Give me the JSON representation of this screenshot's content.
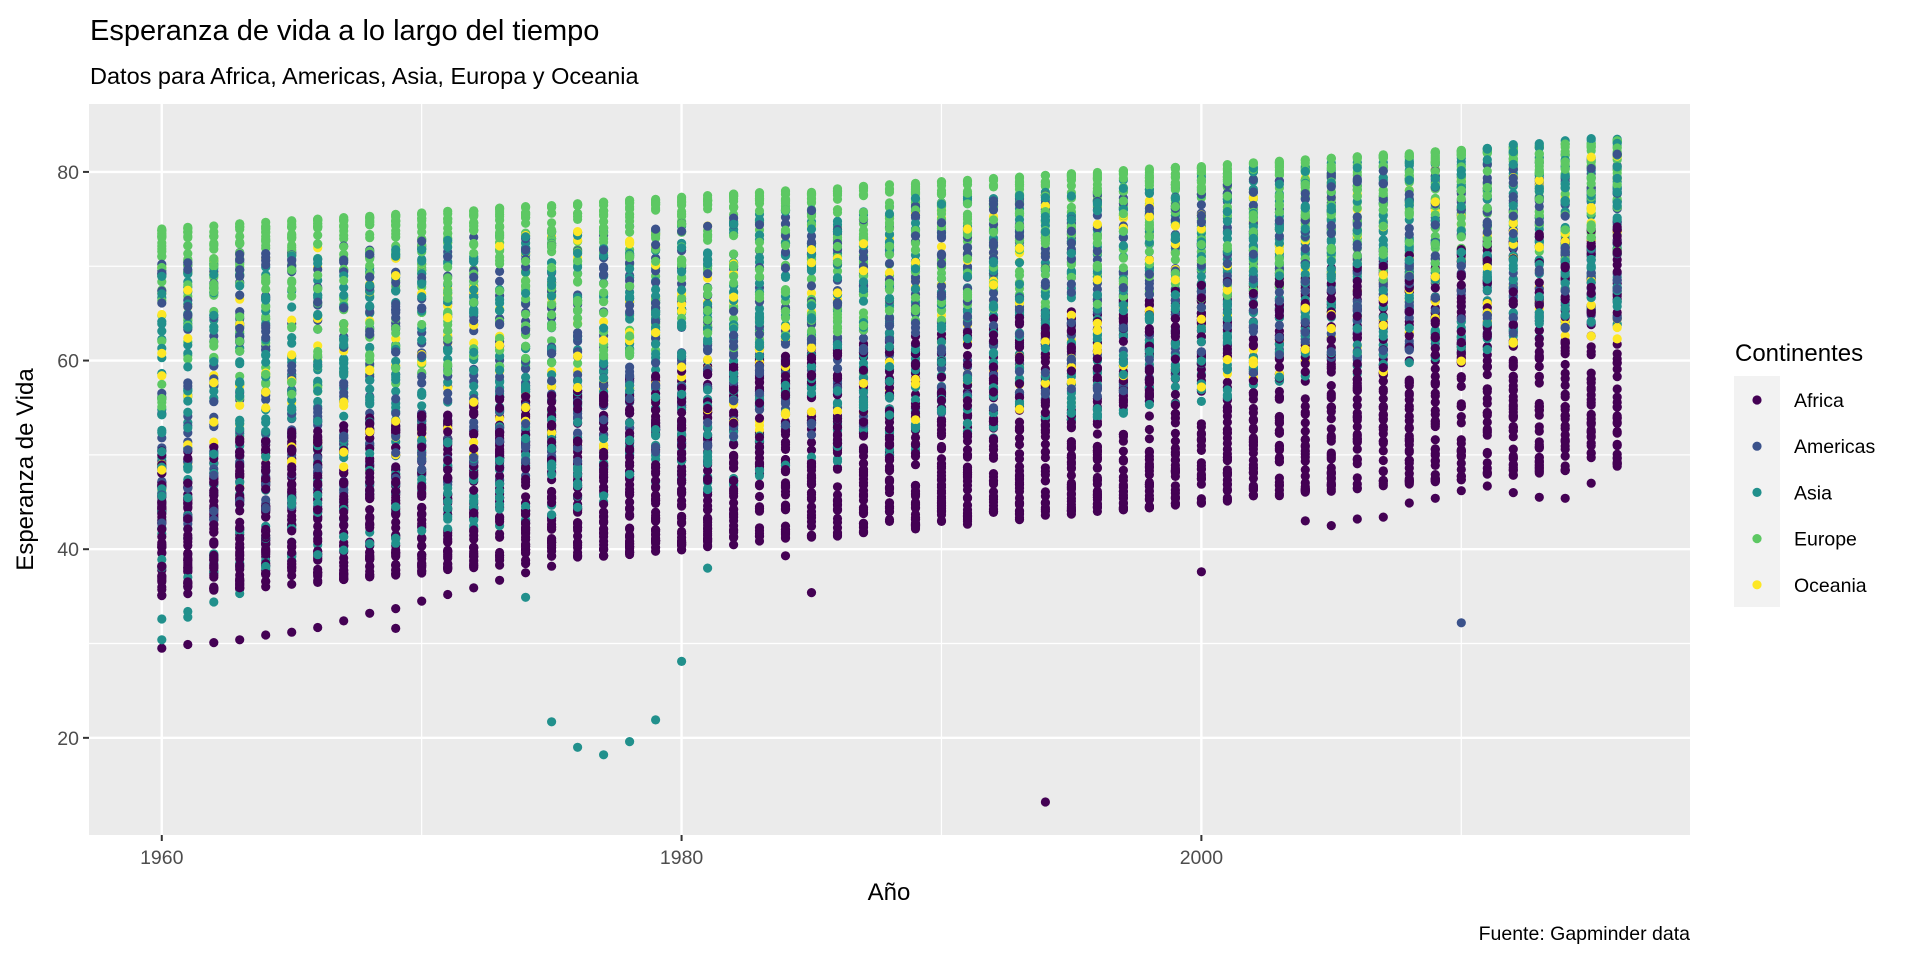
{
  "chart_data": {
    "type": "scatter",
    "title": "Esperanza de vida a lo largo del tiempo",
    "subtitle": "Datos para Africa, Americas, Asia, Europa y Oceania",
    "caption": "Fuente: Gapminder data",
    "xlabel": "Año",
    "ylabel": "Esperanza de Vida",
    "xlim": [
      1957.2,
      2018.8
    ],
    "ylim": [
      9.7,
      87.2
    ],
    "x_ticks": [
      1960,
      1980,
      2000
    ],
    "x_tick_labels": [
      "1960",
      "1980",
      "2000"
    ],
    "x_minor_ticks": [
      1970,
      1990,
      2010
    ],
    "y_ticks": [
      20,
      40,
      60,
      80
    ],
    "y_tick_labels": [
      "20",
      "40",
      "60",
      "80"
    ],
    "y_minor_ticks": [
      30,
      50,
      70
    ],
    "grid": true,
    "x_years": [
      1960,
      2016
    ],
    "legend": {
      "title": "Continentes",
      "placement": "right",
      "entries": [
        "Africa",
        "Americas",
        "Asia",
        "Europe",
        "Oceania"
      ]
    },
    "series": [
      {
        "name": "Africa",
        "color": "#440154",
        "per_year_range": {
          "start": [
            35.0,
            50.5
          ],
          "end": [
            48.8,
            75.0
          ]
        },
        "points_per_year": 52,
        "lower_tail": [
          [
            1960,
            29.5
          ],
          [
            1961,
            29.9
          ],
          [
            1962,
            30.1
          ],
          [
            1963,
            30.4
          ],
          [
            1964,
            30.9
          ],
          [
            1965,
            31.2
          ],
          [
            1966,
            31.7
          ],
          [
            1967,
            32.4
          ],
          [
            1968,
            33.2
          ],
          [
            1969,
            31.6
          ],
          [
            1969,
            33.7
          ],
          [
            1970,
            34.5
          ],
          [
            1971,
            35.2
          ],
          [
            1972,
            35.9
          ],
          [
            1973,
            36.7
          ],
          [
            1974,
            37.5
          ],
          [
            1975,
            38.2
          ],
          [
            1984,
            39.3
          ],
          [
            1985,
            35.4
          ],
          [
            1986,
            41.4
          ],
          [
            1994,
            13.2
          ],
          [
            2000,
            37.6
          ],
          [
            2004,
            43.0
          ],
          [
            2005,
            42.5
          ],
          [
            2006,
            43.2
          ],
          [
            2007,
            43.4
          ],
          [
            2008,
            44.9
          ],
          [
            2009,
            45.4
          ],
          [
            2010,
            46.2
          ],
          [
            2011,
            46.7
          ],
          [
            2012,
            46.0
          ],
          [
            2013,
            45.5
          ],
          [
            2014,
            45.4
          ],
          [
            2015,
            47.0
          ],
          [
            2016,
            48.8
          ]
        ]
      },
      {
        "name": "Americas",
        "color": "#3B528B",
        "per_year_range": {
          "start": [
            42.0,
            71.0
          ],
          "end": [
            64.0,
            82.0
          ]
        },
        "points_per_year": 25,
        "lower_tail": [
          [
            2010,
            32.2
          ]
        ]
      },
      {
        "name": "Asia",
        "color": "#21908C",
        "per_year_range": {
          "start": [
            36.0,
            70.0
          ],
          "end": [
            63.5,
            84.0
          ]
        },
        "points_per_year": 33,
        "lower_tail": [
          [
            1960,
            32.6
          ],
          [
            1960,
            30.4
          ],
          [
            1961,
            33.4
          ],
          [
            1961,
            32.8
          ],
          [
            1962,
            34.4
          ],
          [
            1963,
            35.3
          ],
          [
            1974,
            34.9
          ],
          [
            1975,
            21.7
          ],
          [
            1976,
            19.0
          ],
          [
            1977,
            18.2
          ],
          [
            1978,
            19.6
          ],
          [
            1979,
            21.9
          ],
          [
            1980,
            28.1
          ],
          [
            1981,
            38.0
          ]
        ]
      },
      {
        "name": "Europe",
        "color": "#5DC863",
        "per_year_range": {
          "start": [
            55.0,
            74.0
          ],
          "end": [
            71.0,
            83.3
          ]
        },
        "points_per_year": 30,
        "lower_tail": []
      },
      {
        "name": "Oceania",
        "color": "#FDE725",
        "per_year_range": {
          "start": [
            45.5,
            71.0
          ],
          "end": [
            61.0,
            82.0
          ]
        },
        "points_per_year": 8,
        "lower_tail": []
      }
    ]
  }
}
